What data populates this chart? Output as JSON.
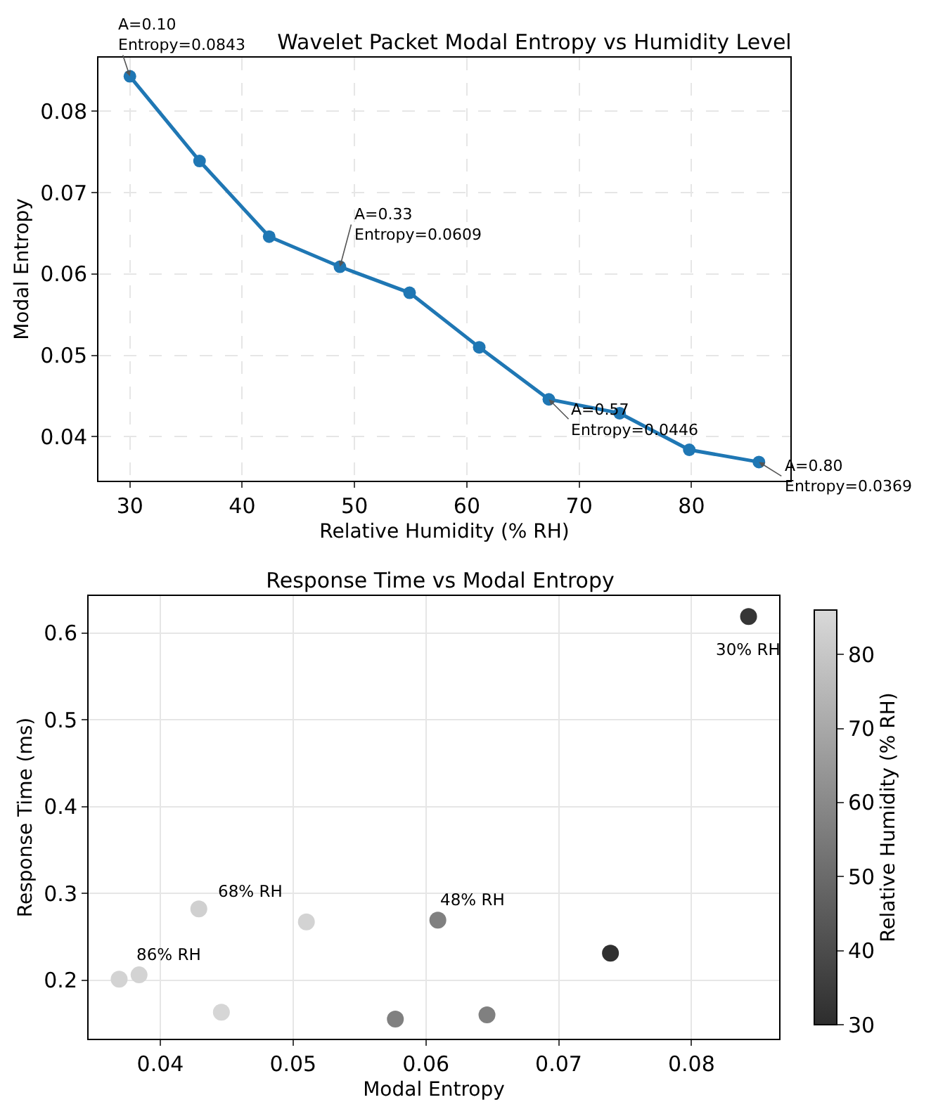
{
  "chart_data": [
    {
      "type": "line",
      "title": "Wavelet Packet Modal Entropy vs Humidity Level",
      "xlabel": "Relative Humidity (% RH)",
      "ylabel": "Modal Entropy",
      "x": [
        30,
        36.2,
        42.4,
        48.7,
        54.9,
        61.1,
        67.3,
        73.6,
        79.8,
        86
      ],
      "series": [
        {
          "color": "#1f77b4",
          "values": [
            0.0843,
            0.0739,
            0.0646,
            0.0609,
            0.0577,
            0.051,
            0.0446,
            0.0429,
            0.0384,
            0.0369
          ]
        }
      ],
      "xlim": [
        27.2,
        88.8
      ],
      "xticks": [
        30,
        40,
        50,
        60,
        70,
        80
      ],
      "ylim": [
        0.0346,
        0.0866
      ],
      "yticks": [
        0.04,
        0.05,
        0.06,
        0.07,
        0.08
      ],
      "grid": true,
      "marker": "circle",
      "line_style": "solid",
      "legend": false,
      "annotations": [
        {
          "text": "A=0.10\nEntropy=0.0843",
          "x": 30,
          "y": 0.0843
        },
        {
          "text": "A=0.33\nEntropy=0.0609",
          "x": 48.7,
          "y": 0.0609
        },
        {
          "text": "A=0.57\nEntropy=0.0446",
          "x": 67.3,
          "y": 0.0446
        },
        {
          "text": "A=0.80\nEntropy=0.0369",
          "x": 86,
          "y": 0.0369
        }
      ]
    },
    {
      "type": "scatter",
      "title": "Response Time vs Modal Entropy",
      "xlabel": "Modal Entropy",
      "ylabel": "Response Time (ms)",
      "clabel": "Relative Humidity (% RH)",
      "x": [
        0.0843,
        0.0739,
        0.0646,
        0.0609,
        0.0577,
        0.051,
        0.0446,
        0.0429,
        0.0384,
        0.0369
      ],
      "values": [
        0.619,
        0.231,
        0.16,
        0.269,
        0.155,
        0.267,
        0.163,
        0.282,
        0.206,
        0.201
      ],
      "cvalues": [
        33,
        31,
        57,
        57,
        57,
        84,
        85,
        83,
        84,
        84
      ],
      "clim": [
        30,
        86
      ],
      "cticks": [
        30,
        40,
        50,
        60,
        70,
        80
      ],
      "xlim": [
        0.0346,
        0.0866
      ],
      "xticks": [
        0.04,
        0.05,
        0.06,
        0.07,
        0.08
      ],
      "ylim": [
        0.1324,
        0.6426
      ],
      "yticks": [
        0.2,
        0.3,
        0.4,
        0.5,
        0.6
      ],
      "grid": true,
      "marker": "circle",
      "legend": false,
      "annotations": [
        {
          "text": "30% RH",
          "x": 0.0843,
          "y": 0.619
        },
        {
          "text": "48% RH",
          "x": 0.0609,
          "y": 0.269
        },
        {
          "text": "68% RH",
          "x": 0.0429,
          "y": 0.282
        },
        {
          "text": "86% RH",
          "x": 0.0384,
          "y": 0.206
        }
      ]
    }
  ]
}
